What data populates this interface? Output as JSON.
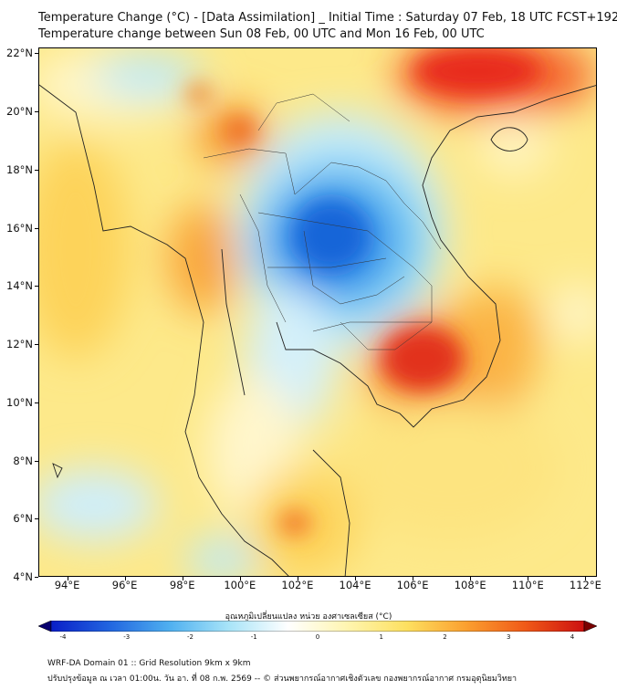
{
  "header": {
    "title_line1": "Temperature Change (°C) - [Data Assimilation] _ Initial Time : Saturday 07 Feb, 18 UTC FCST+192",
    "title_line2": "Temperature change between Sun 08 Feb, 00 UTC and Mon 16 Feb, 00 UTC"
  },
  "map": {
    "lat_labels": [
      "22°N",
      "20°N",
      "18°N",
      "16°N",
      "14°N",
      "12°N",
      "10°N",
      "8°N",
      "6°N",
      "4°N"
    ],
    "lon_labels": [
      "94°E",
      "96°E",
      "98°E",
      "100°E",
      "102°E",
      "104°E",
      "106°E",
      "108°E",
      "110°E",
      "112°E"
    ],
    "lat_range": [
      4,
      22.2
    ],
    "lon_range": [
      93,
      112.4
    ]
  },
  "colorbar": {
    "label": "อุณหภูมิเปลี่ยนแปลง หน่วย องศาเซลเซียส (°C)",
    "ticks": [
      "-4",
      "-3",
      "-2",
      "-1",
      "0",
      "1",
      "2",
      "3",
      "4"
    ],
    "colors": [
      "#08006e",
      "#0a1fc8",
      "#2266e0",
      "#4fb0f0",
      "#a8e4f8",
      "#ffffff",
      "#fff5b0",
      "#fde060",
      "#fba030",
      "#f05a18",
      "#cc1010",
      "#7a0000"
    ]
  },
  "footer": {
    "line1": "WRF-DA Domain 01 :: Grid Resolution 9km x 9km",
    "line2": "ปรับปรุงข้อมูล ณ เวลา 01:00น. วัน อา. ที่ 08 ก.พ. 2569 -- © ส่วนพยากรณ์อากาศเชิงตัวเลข กองพยากรณ์อากาศ กรมอุตุนิยมวิทยา"
  }
}
